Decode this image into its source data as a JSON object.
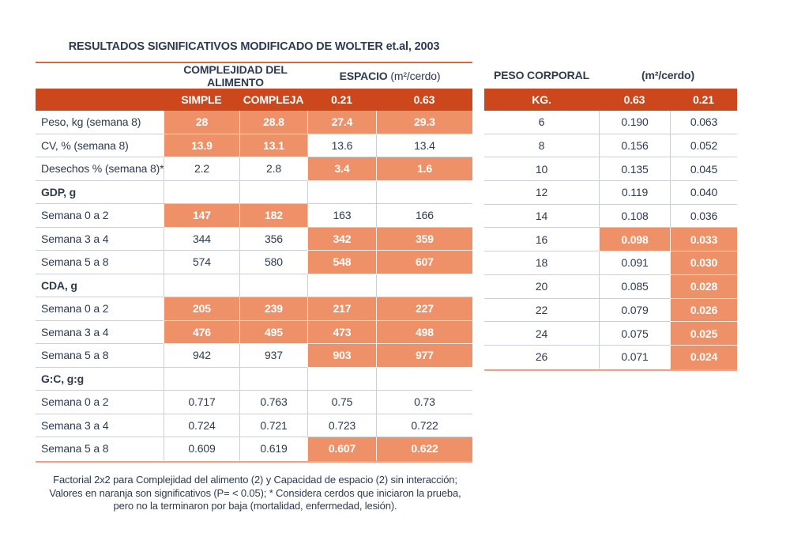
{
  "title": "RESULTADOS SIGNIFICATIVOS MODIFICADO DE WOLTER et.al, 2003",
  "colors": {
    "header_orange": "#CC481C",
    "highlight_orange": "#EE9168",
    "text_navy": "#2D3B52",
    "grid_gray": "#CBD0D6",
    "top_rule_orange": "#D96A40",
    "bottom_rule_orange": "#EFA285"
  },
  "footer": {
    "line1": "Factorial 2x2 para Complejidad del alimento (2) y Capacidad de espacio (2) sin interacción;",
    "line2": "Valores en naranja son significativos (P= < 0.05); * Considera cerdos que iniciaron la prueba,",
    "line3": "pero no la terminaron por baja (mortalidad, enfermedad, lesión)."
  },
  "chart_data": [
    {
      "type": "table",
      "name": "resultados-significativos",
      "group_headers": {
        "complejidad": "COMPLEJIDAD DEL ALIMENTO",
        "espacio": "ESPACIO",
        "espacio_unit": "(m²/cerdo)"
      },
      "col_headers": [
        "SIMPLE",
        "COMPLEJA",
        "0.21",
        "0.63"
      ],
      "rows": [
        {
          "label": "Peso, kg (semana 8)",
          "section": false,
          "values": [
            "28",
            "28.8",
            "27.4",
            "29.3"
          ],
          "hl": [
            true,
            true,
            true,
            true
          ]
        },
        {
          "label": "CV, % (semana 8)",
          "section": false,
          "values": [
            "13.9",
            "13.1",
            "13.6",
            "13.4"
          ],
          "hl": [
            true,
            true,
            false,
            false
          ]
        },
        {
          "label": "Desechos % (semana 8)*",
          "section": false,
          "values": [
            "2.2",
            "2.8",
            "3.4",
            "1.6"
          ],
          "hl": [
            false,
            false,
            true,
            true
          ]
        },
        {
          "label": "GDP, g",
          "section": true,
          "values": [
            "",
            "",
            "",
            ""
          ],
          "hl": [
            false,
            false,
            false,
            false
          ]
        },
        {
          "label": "Semana 0 a 2",
          "section": false,
          "values": [
            "147",
            "182",
            "163",
            "166"
          ],
          "hl": [
            true,
            true,
            false,
            false
          ]
        },
        {
          "label": "Semana 3 a 4",
          "section": false,
          "values": [
            "344",
            "356",
            "342",
            "359"
          ],
          "hl": [
            false,
            false,
            true,
            true
          ]
        },
        {
          "label": "Semana 5 a 8",
          "section": false,
          "values": [
            "574",
            "580",
            "548",
            "607"
          ],
          "hl": [
            false,
            false,
            true,
            true
          ]
        },
        {
          "label": "CDA, g",
          "section": true,
          "values": [
            "",
            "",
            "",
            ""
          ],
          "hl": [
            false,
            false,
            false,
            false
          ]
        },
        {
          "label": "Semana 0 a 2",
          "section": false,
          "values": [
            "205",
            "239",
            "217",
            "227"
          ],
          "hl": [
            true,
            true,
            true,
            true
          ]
        },
        {
          "label": "Semana 3 a 4",
          "section": false,
          "values": [
            "476",
            "495",
            "473",
            "498"
          ],
          "hl": [
            true,
            true,
            true,
            true
          ]
        },
        {
          "label": "Semana 5 a 8",
          "section": false,
          "values": [
            "942",
            "937",
            "903",
            "977"
          ],
          "hl": [
            false,
            false,
            true,
            true
          ]
        },
        {
          "label": "G:C, g:g",
          "section": true,
          "values": [
            "",
            "",
            "",
            ""
          ],
          "hl": [
            false,
            false,
            false,
            false
          ]
        },
        {
          "label": "Semana 0 a 2",
          "section": false,
          "values": [
            "0.717",
            "0.763",
            "0.75",
            "0.73"
          ],
          "hl": [
            false,
            false,
            false,
            false
          ]
        },
        {
          "label": "Semana 3 a 4",
          "section": false,
          "values": [
            "0.724",
            "0.721",
            "0.723",
            "0.722"
          ],
          "hl": [
            false,
            false,
            false,
            false
          ]
        },
        {
          "label": "Semana 5 a 8",
          "section": false,
          "values": [
            "0.609",
            "0.619",
            "0.607",
            "0.622"
          ],
          "hl": [
            false,
            false,
            true,
            true
          ]
        }
      ]
    },
    {
      "type": "table",
      "name": "peso-corporal-espacio",
      "group_headers": {
        "peso": "PESO CORPORAL",
        "unit": "(m²/cerdo)"
      },
      "col_headers": [
        "KG.",
        "0.63",
        "0.21"
      ],
      "rows": [
        {
          "label": "6",
          "section": false,
          "values": [
            "0.190",
            "0.063"
          ],
          "hl": [
            false,
            false
          ]
        },
        {
          "label": "8",
          "section": false,
          "values": [
            "0.156",
            "0.052"
          ],
          "hl": [
            false,
            false
          ]
        },
        {
          "label": "10",
          "section": false,
          "values": [
            "0.135",
            "0.045"
          ],
          "hl": [
            false,
            false
          ]
        },
        {
          "label": "12",
          "section": false,
          "values": [
            "0.119",
            "0.040"
          ],
          "hl": [
            false,
            false
          ]
        },
        {
          "label": "14",
          "section": false,
          "values": [
            "0.108",
            "0.036"
          ],
          "hl": [
            false,
            false
          ]
        },
        {
          "label": "16",
          "section": false,
          "values": [
            "0.098",
            "0.033"
          ],
          "hl": [
            true,
            true
          ]
        },
        {
          "label": "18",
          "section": false,
          "values": [
            "0.091",
            "0.030"
          ],
          "hl": [
            false,
            true
          ]
        },
        {
          "label": "20",
          "section": false,
          "values": [
            "0.085",
            "0.028"
          ],
          "hl": [
            false,
            true
          ]
        },
        {
          "label": "22",
          "section": false,
          "values": [
            "0.079",
            "0.026"
          ],
          "hl": [
            false,
            true
          ]
        },
        {
          "label": "24",
          "section": false,
          "values": [
            "0.075",
            "0.025"
          ],
          "hl": [
            false,
            true
          ]
        },
        {
          "label": "26",
          "section": false,
          "values": [
            "0.071",
            "0.024"
          ],
          "hl": [
            false,
            true
          ]
        }
      ]
    }
  ]
}
